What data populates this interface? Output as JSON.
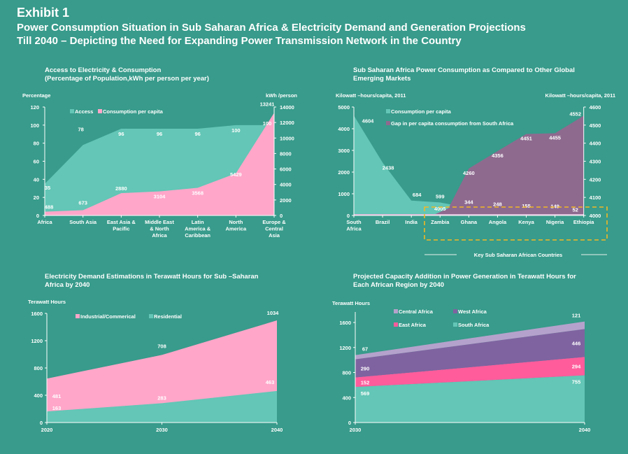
{
  "header": {
    "exhibit": "Exhibit 1",
    "title_line1": "Power Consumption Situation in Sub Saharan Africa & Electricity Demand and Generation Projections",
    "title_line2": "Till 2040 – Depicting the Need for Expanding Power Transmission Network in the Country"
  },
  "colors": {
    "background": "#389b8b",
    "teal_area": "#63c6b6",
    "pink_area": "#ffa6c9",
    "mauve_area": "#8e6a8f",
    "purple_area": "#7f63a0",
    "light_purple_area": "#b5a2cc",
    "hot_pink_area": "#ff5c9c",
    "highlight_dash": "#f2b824"
  },
  "chart_data": [
    {
      "id": "access-consumption",
      "type": "area",
      "title_line1": "Access to Electricity & Consumption",
      "title_line2": "(Percentage of Population,kWh per person per year)",
      "ylabel": "Percentage",
      "y2label": "kWh /person",
      "ylim": [
        0,
        120
      ],
      "yticks": [
        0,
        20,
        40,
        60,
        80,
        100,
        120
      ],
      "y2lim": [
        0,
        14000
      ],
      "y2ticks": [
        0,
        2000,
        4000,
        6000,
        8000,
        10000,
        12000,
        14000
      ],
      "categories": [
        "Africa",
        "South Asia",
        "East Asia & Pacific",
        "Middle East & North Africa",
        "Latin America & Caribbean",
        "North America",
        "Europe & Central Asia"
      ],
      "category_lines": [
        [
          "Africa"
        ],
        [
          "South Asia"
        ],
        [
          "East Asia &",
          "Pacific"
        ],
        [
          "Middle East",
          "& North",
          "Africa"
        ],
        [
          "Latin",
          "America &",
          "Caribbean"
        ],
        [
          "North",
          "America"
        ],
        [
          "Europe &",
          "Central",
          "Asia"
        ]
      ],
      "series": [
        {
          "name": "Access",
          "axis": "left",
          "color": "#63c6b6",
          "values": [
            35,
            78,
            96,
            96,
            96,
            100,
            100
          ]
        },
        {
          "name": "Consumption per capita",
          "axis": "right",
          "color": "#ffa6c9",
          "values": [
            488,
            673,
            2880,
            3104,
            3568,
            5429,
            13241
          ]
        }
      ],
      "legend": [
        "Access",
        "Consumption per capita"
      ],
      "legend_position": "top-center"
    },
    {
      "id": "ssa-vs-emerging",
      "type": "area",
      "title_line1": "Sub Saharan Africa Power Consumption as Compared to Other Global",
      "title_line2": "Emerging Markets",
      "ylabel": "Kilowatt –hours/capita, 2011",
      "y2label": "Kilowatt –hours/capita, 2011",
      "ylim": [
        0,
        5000
      ],
      "yticks": [
        0,
        1000,
        2000,
        3000,
        4000,
        5000
      ],
      "y2lim": [
        4000,
        4600
      ],
      "y2ticks": [
        4000,
        4100,
        4200,
        4300,
        4400,
        4500,
        4600
      ],
      "categories": [
        "South Africa",
        "Brazil",
        "India",
        "Zambia",
        "Ghana",
        "Angola",
        "Kenya",
        "Nigeria",
        "Ethiopia"
      ],
      "category_lines": [
        [
          "South",
          "Africa"
        ],
        [
          "Brazil"
        ],
        [
          "India"
        ],
        [
          "Zambia"
        ],
        [
          "Ghana"
        ],
        [
          "Angola"
        ],
        [
          "Kenya"
        ],
        [
          "Nigeria"
        ],
        [
          "Ethiopia"
        ]
      ],
      "series": [
        {
          "name": "Consumption per capita",
          "axis": "left",
          "color": "#63c6b6",
          "values": [
            4604,
            2438,
            684,
            599,
            344,
            248,
            155,
            149,
            52
          ]
        },
        {
          "name": "Gap in per capita consumption from South Africa",
          "axis": "right",
          "color": "#8e6a8f",
          "values": [
            null,
            null,
            null,
            4005,
            4260,
            4356,
            4451,
            4455,
            4552
          ]
        }
      ],
      "legend": [
        "Consumption per capita",
        "Gap in per capita consumption from South Africa"
      ],
      "legend_position": "top-center",
      "annotation": "Key Sub Saharan African Countries"
    },
    {
      "id": "demand-estimations",
      "type": "area",
      "stacked": true,
      "title_line1": "Electricity Demand Estimations in Terawatt Hours for Sub –Saharan",
      "title_line2": "Africa by 2040",
      "ylabel": "Terawatt Hours",
      "ylim": [
        0,
        1600
      ],
      "yticks": [
        0,
        400,
        800,
        1200,
        1600
      ],
      "x": [
        "2020",
        "2030",
        "2040"
      ],
      "series": [
        {
          "name": "Residential",
          "color": "#63c6b6",
          "values": [
            163,
            283,
            463
          ]
        },
        {
          "name": "Industrial/Commerical",
          "color": "#ffa6c9",
          "values": [
            481,
            708,
            1034
          ]
        }
      ],
      "legend": [
        "Industrial/Commerical",
        "Residential"
      ],
      "legend_position": "top-center"
    },
    {
      "id": "capacity-addition",
      "type": "area",
      "stacked": true,
      "title_line1": "Projected Capacity Addition in Power Generation in Terawatt Hours for",
      "title_line2": "Each African Region by 2040",
      "ylabel": "Terawatt Hours",
      "ylim": [
        0,
        1600
      ],
      "yticks": [
        0,
        400,
        800,
        1200,
        1600
      ],
      "x": [
        "2030",
        "2040"
      ],
      "series": [
        {
          "name": "South Africa",
          "color": "#63c6b6",
          "values": [
            569,
            755
          ]
        },
        {
          "name": "East Africa",
          "color": "#ff5c9c",
          "values": [
            152,
            294
          ]
        },
        {
          "name": "West Africa",
          "color": "#7f63a0",
          "values": [
            290,
            446
          ]
        },
        {
          "name": "Central Africa",
          "color": "#b5a2cc",
          "values": [
            67,
            121
          ]
        }
      ],
      "legend": [
        "Central Africa",
        "West Africa",
        "East Africa",
        "South Africa"
      ],
      "legend_position": "top-left"
    }
  ]
}
